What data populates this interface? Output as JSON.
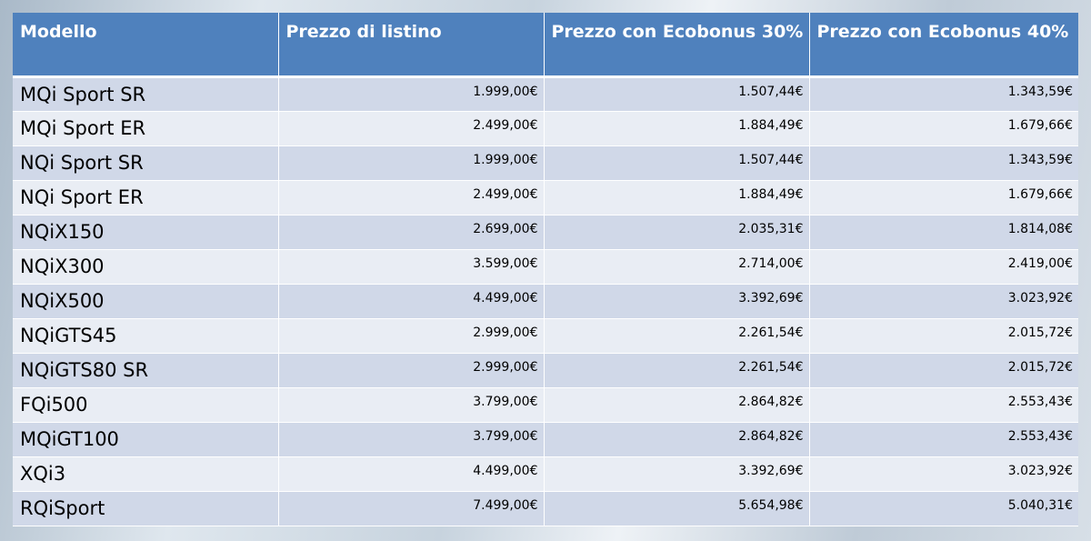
{
  "table": {
    "headers": [
      "Modello",
      "Prezzo di listino",
      "Prezzo con Ecobonus 30%",
      "Prezzo con Ecobonus 40%"
    ],
    "rows": [
      [
        "MQi Sport SR",
        "1.999,00€",
        "1.507,44€",
        "1.343,59€"
      ],
      [
        "MQi Sport ER",
        "2.499,00€",
        "1.884,49€",
        "1.679,66€"
      ],
      [
        "NQi Sport SR",
        "1.999,00€",
        "1.507,44€",
        "1.343,59€"
      ],
      [
        "NQi Sport ER",
        "2.499,00€",
        "1.884,49€",
        "1.679,66€"
      ],
      [
        "NQiX150",
        "2.699,00€",
        "2.035,31€",
        "1.814,08€"
      ],
      [
        "NQiX300",
        "3.599,00€",
        "2.714,00€",
        "2.419,00€"
      ],
      [
        "NQiX500",
        "4.499,00€",
        "3.392,69€",
        "3.023,92€"
      ],
      [
        "NQiGTS45",
        "2.999,00€",
        "2.261,54€",
        "2.015,72€"
      ],
      [
        "NQiGTS80 SR",
        "2.999,00€",
        "2.261,54€",
        "2.015,72€"
      ],
      [
        "FQi500",
        "3.799,00€",
        "2.864,82€",
        "2.553,43€"
      ],
      [
        "MQiGT100",
        "3.799,00€",
        "2.864,82€",
        "2.553,43€"
      ],
      [
        "XQi3",
        "4.499,00€",
        "3.392,69€",
        "3.023,92€"
      ],
      [
        "RQiSport",
        "7.499,00€",
        "5.654,98€",
        "5.040,31€"
      ]
    ]
  },
  "colors": {
    "header_bg": "#4f81bd",
    "row_dark": "#d0d8e8",
    "row_light": "#e9edf4"
  }
}
